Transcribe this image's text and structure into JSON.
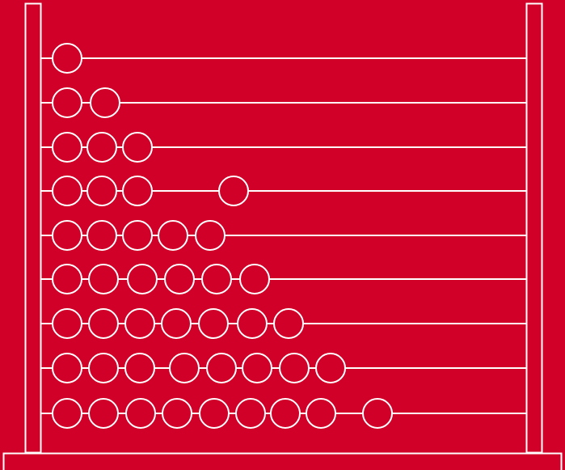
{
  "colors": {
    "background": "#d10029",
    "stroke": "#ffffff"
  },
  "abacus": {
    "rows": [
      {
        "beads": 1
      },
      {
        "beads": 2
      },
      {
        "beads": 3
      },
      {
        "beads": 4
      },
      {
        "beads": 5
      },
      {
        "beads": 6
      },
      {
        "beads": 7
      },
      {
        "beads": 8
      },
      {
        "beads": 9
      }
    ]
  }
}
